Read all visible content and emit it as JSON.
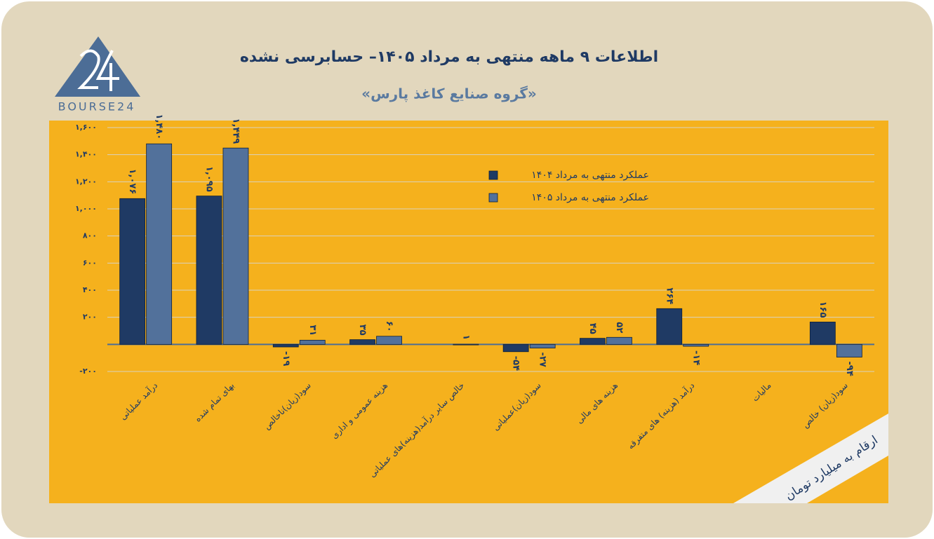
{
  "logo": "BOURSE24",
  "note": "ارقام به میلیارد تومان",
  "chart_data": {
    "type": "bar",
    "title": "اطلاعات ۹ ماهه منتهی به مرداد ۱۴۰۵– حسابرسی نشده",
    "subtitle": "«گروه صنایع کاغذ پارس»",
    "categories": [
      "درآمد عملیاتی",
      "بهای تمام شده",
      "سود(زیان)ناخالص",
      "هزینه عمومی و اداری",
      "خالص سایر درآمد(هزینه)های عملیاتی",
      "سود(زیان)عملیاتی",
      "هزینه های مالی",
      "درآمد (هزینه) های متفرقه",
      "مالیات",
      "سود(زیان) خالص"
    ],
    "series": [
      {
        "name": "عملکرد منتهی به مرداد ۱۴۰۴",
        "color": "#1f3a64",
        "values": [
          1076,
          1095,
          -19,
          35,
          null,
          -54,
          45,
          264,
          null,
          165
        ],
        "value_labels": [
          "۱,۰۷۶",
          "۱,۰۹۵",
          "-۱۹",
          "۳۵",
          null,
          "-۵۴",
          "۴۵",
          "۲۶۴",
          null,
          "۱۶۵"
        ]
      },
      {
        "name": "عملکرد منتهی به مرداد ۱۴۰۵",
        "color": "#52719b",
        "values": [
          1480,
          1449,
          31,
          60,
          1,
          -27,
          52,
          -14,
          null,
          -94
        ],
        "value_labels": [
          "۱,۴۸۰",
          "۱,۴۴۹",
          "۳۱",
          "۶۰",
          "۱",
          "-۲۷",
          "۵۲",
          "-۱۴",
          null,
          "-۹۴"
        ]
      }
    ],
    "ylim": [
      -200,
      1600
    ],
    "yticks": [
      {
        "value": -200,
        "label": "-۲۰۰"
      },
      {
        "value": 200,
        "label": "۲۰۰"
      },
      {
        "value": 400,
        "label": "۴۰۰"
      },
      {
        "value": 600,
        "label": "۶۰۰"
      },
      {
        "value": 800,
        "label": "۸۰۰"
      },
      {
        "value": 1000,
        "label": "۱,۰۰۰"
      },
      {
        "value": 1200,
        "label": "۱,۲۰۰"
      },
      {
        "value": 1400,
        "label": "۱,۴۰۰"
      },
      {
        "value": 1600,
        "label": "۱,۶۰۰"
      }
    ],
    "grid": true
  }
}
